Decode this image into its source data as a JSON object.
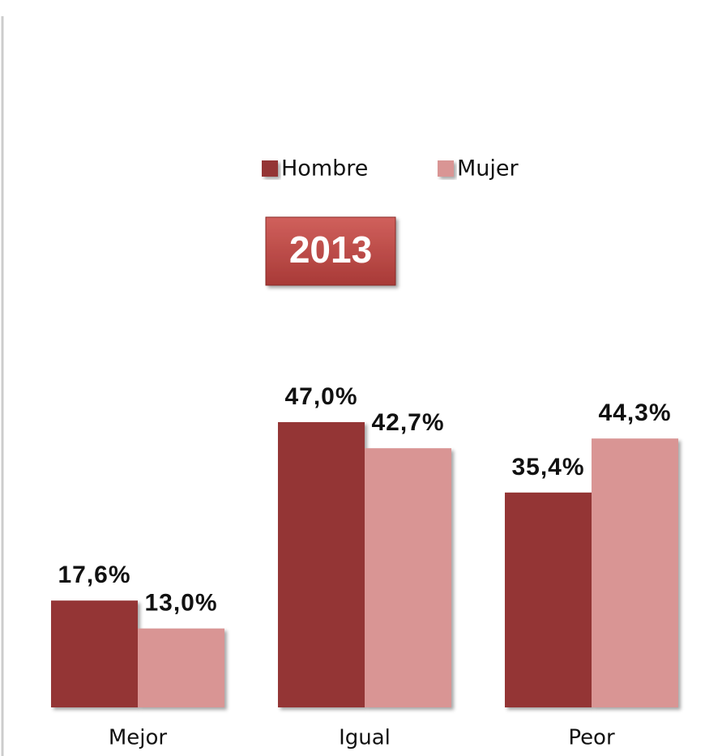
{
  "chart_data": {
    "type": "bar",
    "title": "2013",
    "categories": [
      "Mejor",
      "Igual",
      "Peor"
    ],
    "series": [
      {
        "name": "Hombre",
        "color": "#943634",
        "values": [
          17.6,
          47.0,
          35.4
        ],
        "value_labels": [
          "17,6%",
          "47,0%",
          "35,4%"
        ]
      },
      {
        "name": "Mujer",
        "color": "#d99594",
        "values": [
          13.0,
          42.7,
          44.3
        ],
        "value_labels": [
          "13,0%",
          "42,7%",
          "44,3%"
        ]
      }
    ]
  }
}
